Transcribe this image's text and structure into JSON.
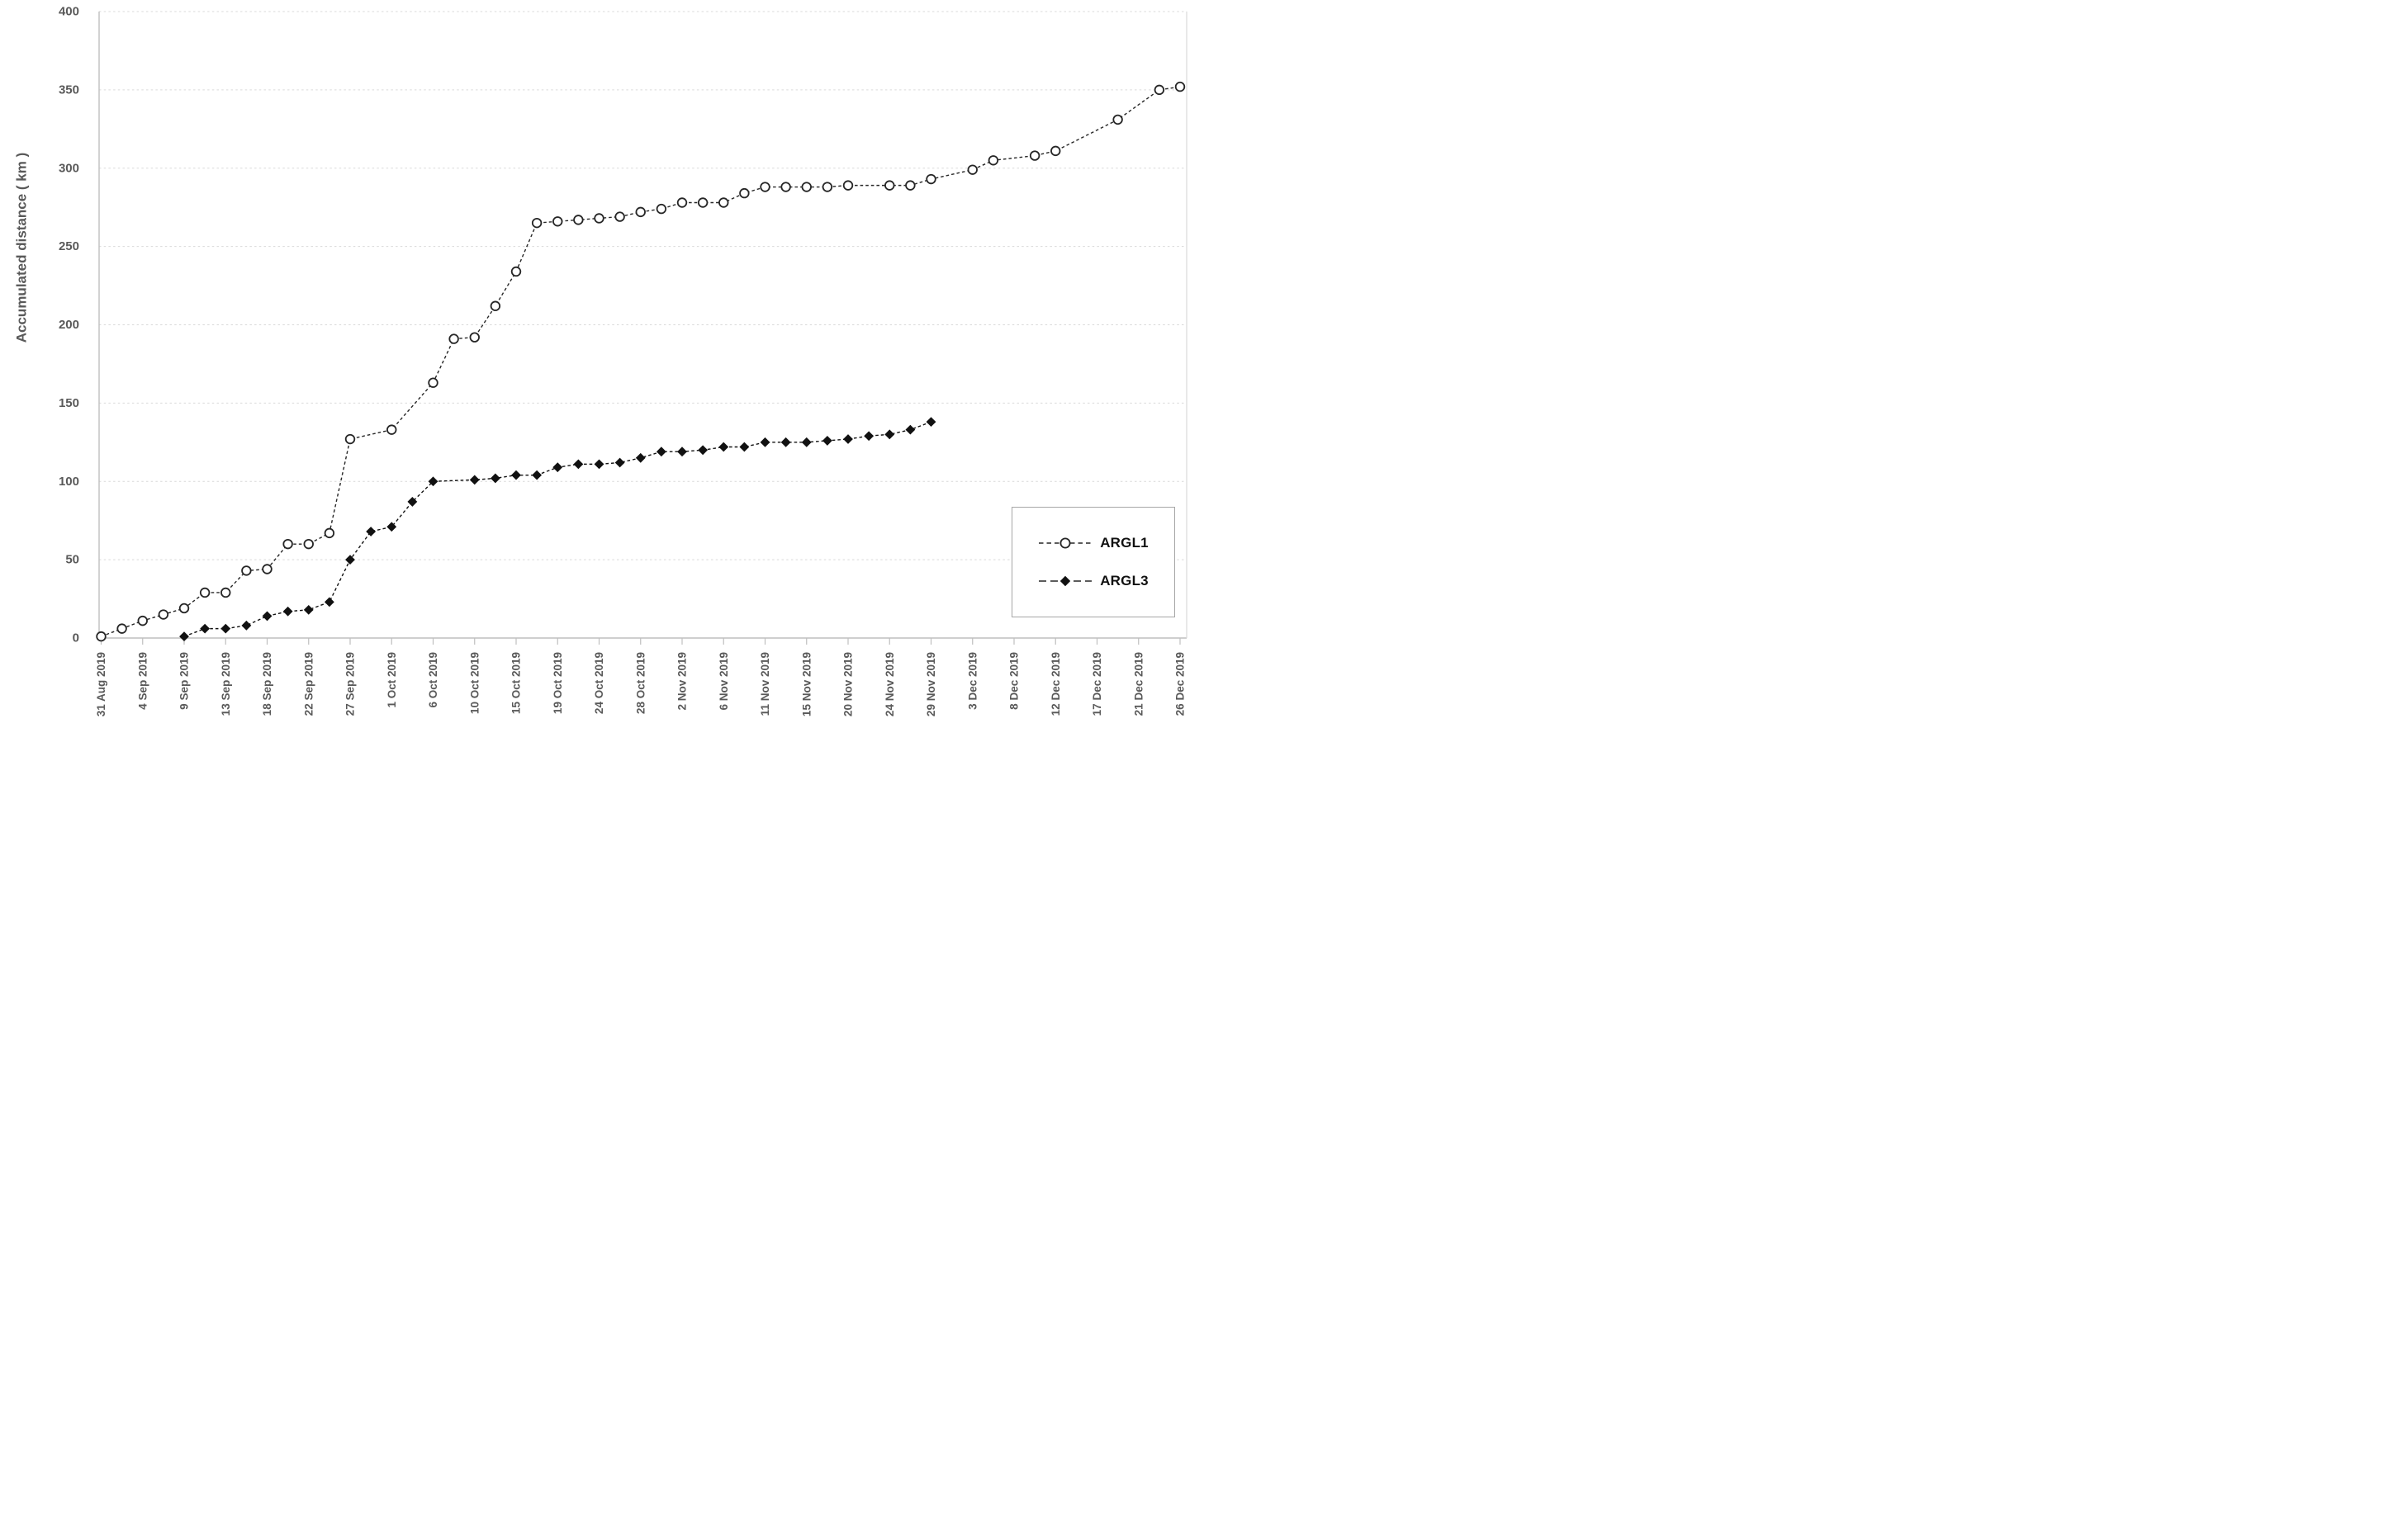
{
  "chart_data": {
    "type": "line",
    "title": "",
    "xlabel": "",
    "ylabel": "Accumulated distance ( km )",
    "ylim": [
      0,
      400
    ],
    "ytick_step": 50,
    "y_tick_labels": [
      "0",
      "50",
      "100",
      "150",
      "200",
      "250",
      "300",
      "350",
      "400"
    ],
    "x_tick_labels": [
      "31 Aug 2019",
      "4 Sep 2019",
      "9 Sep 2019",
      "13 Sep 2019",
      "18 Sep 2019",
      "22 Sep 2019",
      "27 Sep 2019",
      "1 Oct 2019",
      "6 Oct 2019",
      "10 Oct 2019",
      "15 Oct 2019",
      "19 Oct 2019",
      "24 Oct 2019",
      "28 Oct 2019",
      "2 Nov 2019",
      "6 Nov 2019",
      "11 Nov 2019",
      "15 Nov 2019",
      "20 Nov 2019",
      "24 Nov 2019",
      "29 Nov 2019",
      "3 Dec 2019",
      "8 Dec 2019",
      "12 Dec 2019",
      "17 Dec 2019",
      "21 Dec 2019",
      "26 Dec 2019"
    ],
    "grid": "horizontal-dotted",
    "legend_position": "bottom-right",
    "x_unit": "tick-index (0 = 31 Aug 2019 tick, 26 = 26 Dec 2019 tick)",
    "series": [
      {
        "name": "ARGL1",
        "marker": "open-circle",
        "line_style": "dashed",
        "color": "#262626",
        "points": [
          [
            0,
            1
          ],
          [
            0.5,
            6
          ],
          [
            1,
            11
          ],
          [
            1.5,
            15
          ],
          [
            2,
            19
          ],
          [
            2.5,
            29
          ],
          [
            3,
            29
          ],
          [
            3.5,
            43
          ],
          [
            4,
            44
          ],
          [
            4.5,
            60
          ],
          [
            5,
            60
          ],
          [
            5.5,
            67
          ],
          [
            6,
            127
          ],
          [
            7,
            133
          ],
          [
            8,
            163
          ],
          [
            8.5,
            191
          ],
          [
            9,
            192
          ],
          [
            9.5,
            212
          ],
          [
            10,
            234
          ],
          [
            10.5,
            265
          ],
          [
            11,
            266
          ],
          [
            11.5,
            267
          ],
          [
            12,
            268
          ],
          [
            12.5,
            269
          ],
          [
            13,
            272
          ],
          [
            13.5,
            274
          ],
          [
            14,
            278
          ],
          [
            14.5,
            278
          ],
          [
            15,
            278
          ],
          [
            15.5,
            284
          ],
          [
            16,
            288
          ],
          [
            16.5,
            288
          ],
          [
            17,
            288
          ],
          [
            17.5,
            288
          ],
          [
            18,
            289
          ],
          [
            19,
            289
          ],
          [
            19.5,
            289
          ],
          [
            20,
            293
          ],
          [
            21,
            299
          ],
          [
            21.5,
            305
          ],
          [
            22.5,
            308
          ],
          [
            23,
            311
          ],
          [
            24.5,
            331
          ],
          [
            25.5,
            350
          ],
          [
            26,
            352
          ]
        ]
      },
      {
        "name": "ARGL3",
        "marker": "filled-diamond",
        "line_style": "dashed",
        "color": "#111111",
        "points": [
          [
            2,
            1
          ],
          [
            2.5,
            6
          ],
          [
            3,
            6
          ],
          [
            3.5,
            8
          ],
          [
            4,
            14
          ],
          [
            4.5,
            17
          ],
          [
            5,
            18
          ],
          [
            5.5,
            23
          ],
          [
            6,
            50
          ],
          [
            6.5,
            68
          ],
          [
            7,
            71
          ],
          [
            7.5,
            87
          ],
          [
            8,
            100
          ],
          [
            9,
            101
          ],
          [
            9.5,
            102
          ],
          [
            10,
            104
          ],
          [
            10.5,
            104
          ],
          [
            11,
            109
          ],
          [
            11.5,
            111
          ],
          [
            12,
            111
          ],
          [
            12.5,
            112
          ],
          [
            13,
            115
          ],
          [
            13.5,
            119
          ],
          [
            14,
            119
          ],
          [
            14.5,
            120
          ],
          [
            15,
            122
          ],
          [
            15.5,
            122
          ],
          [
            16,
            125
          ],
          [
            16.5,
            125
          ],
          [
            17,
            125
          ],
          [
            17.5,
            126
          ],
          [
            18,
            127
          ],
          [
            18.5,
            129
          ],
          [
            19,
            130
          ],
          [
            19.5,
            133
          ],
          [
            20,
            138
          ]
        ]
      }
    ],
    "colors": {
      "gridline": "#d9d9d9",
      "axis_line": "#bfbfbf",
      "tick_label": "#595959",
      "axis_title": "#595959",
      "legend_border": "#a6a6a6",
      "legend_text": "#111111",
      "background": "#ffffff"
    }
  }
}
